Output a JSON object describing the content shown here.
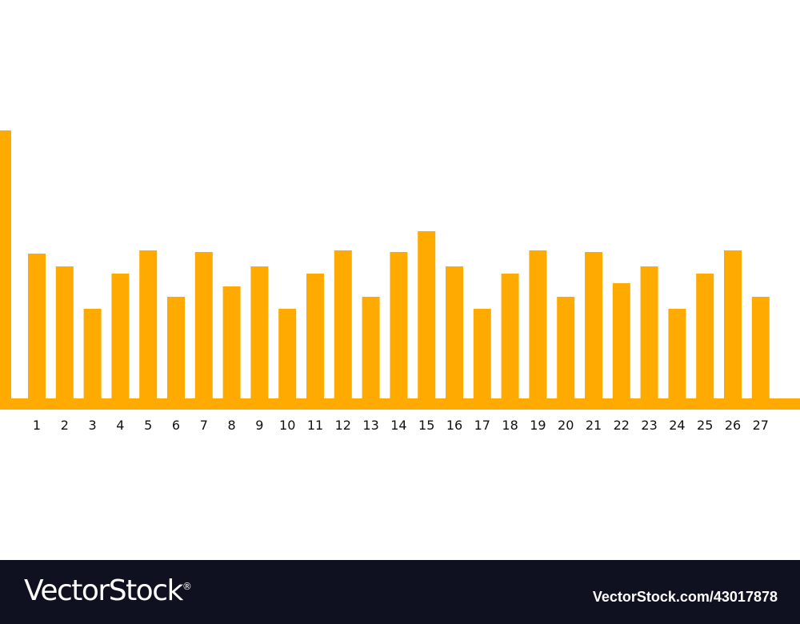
{
  "chart_data": {
    "type": "bar",
    "title": "",
    "xlabel": "",
    "ylabel": "",
    "leading_bar_value": 335,
    "categories": [
      "1",
      "2",
      "3",
      "4",
      "5",
      "6",
      "7",
      "8",
      "9",
      "10",
      "11",
      "12",
      "13",
      "14",
      "15",
      "16",
      "17",
      "18",
      "19",
      "20",
      "21",
      "22",
      "23",
      "24",
      "25",
      "26",
      "27"
    ],
    "values": [
      181,
      165,
      112,
      156,
      185,
      127,
      183,
      140,
      165,
      112,
      156,
      185,
      127,
      183,
      209,
      165,
      112,
      156,
      185,
      127,
      183,
      144,
      165,
      112,
      156,
      185,
      127
    ],
    "ylim": [
      0,
      400
    ],
    "grid": false,
    "legend": "none",
    "bar_color": "#FFAA00",
    "baseline_color": "#FFAA00"
  },
  "footer": {
    "brand": "VectorStock",
    "brand_mark": "®",
    "image_id": "VectorStock.com/43017878",
    "background": "#0F1020"
  }
}
